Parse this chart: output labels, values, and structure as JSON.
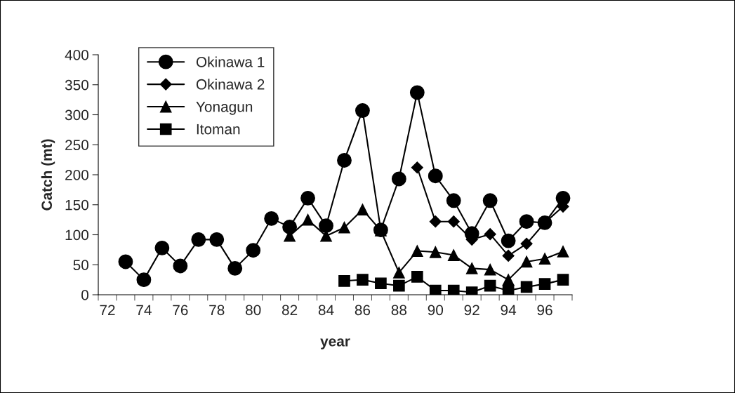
{
  "chart_data": {
    "type": "line",
    "xlabel": "year",
    "ylabel": "Catch (mt)",
    "categories": [
      "72",
      null,
      "74",
      null,
      "76",
      null,
      "78",
      null,
      "80",
      null,
      "82",
      null,
      "84",
      null,
      "86",
      null,
      "88",
      null,
      "90",
      null,
      "92",
      null,
      "94",
      null,
      "96",
      null
    ],
    "ylim": [
      0,
      400
    ],
    "yticks": [
      0,
      50,
      100,
      150,
      200,
      250,
      300,
      350,
      400
    ],
    "grid": false,
    "legend": "top left",
    "line_style": "solid",
    "series": [
      {
        "name": "Okinawa 1",
        "color": "#000000",
        "marker": "circle",
        "values": [
          null,
          55,
          25,
          78,
          48,
          92,
          92,
          44,
          74,
          127,
          113,
          161,
          115,
          224,
          307,
          108,
          193,
          337,
          198,
          157,
          102,
          157,
          90,
          122,
          120,
          161
        ]
      },
      {
        "name": "Okinawa 2",
        "color": "#000000",
        "marker": "diamond",
        "values": [
          null,
          null,
          null,
          null,
          null,
          null,
          null,
          null,
          null,
          null,
          null,
          null,
          null,
          null,
          null,
          null,
          null,
          212,
          122,
          122,
          92,
          101,
          65,
          85,
          120,
          147
        ]
      },
      {
        "name": "Yonagun",
        "color": "#000000",
        "marker": "triangle",
        "values": [
          null,
          null,
          null,
          null,
          null,
          null,
          null,
          null,
          null,
          null,
          98,
          125,
          98,
          112,
          142,
          107,
          37,
          73,
          71,
          66,
          44,
          42,
          25,
          55,
          60,
          72
        ]
      },
      {
        "name": "Itoman",
        "color": "#000000",
        "marker": "square",
        "values": [
          null,
          null,
          null,
          null,
          null,
          null,
          null,
          null,
          null,
          null,
          null,
          null,
          null,
          23,
          25,
          19,
          15,
          30,
          7,
          7,
          4,
          15,
          7,
          13,
          18,
          25
        ]
      }
    ]
  }
}
